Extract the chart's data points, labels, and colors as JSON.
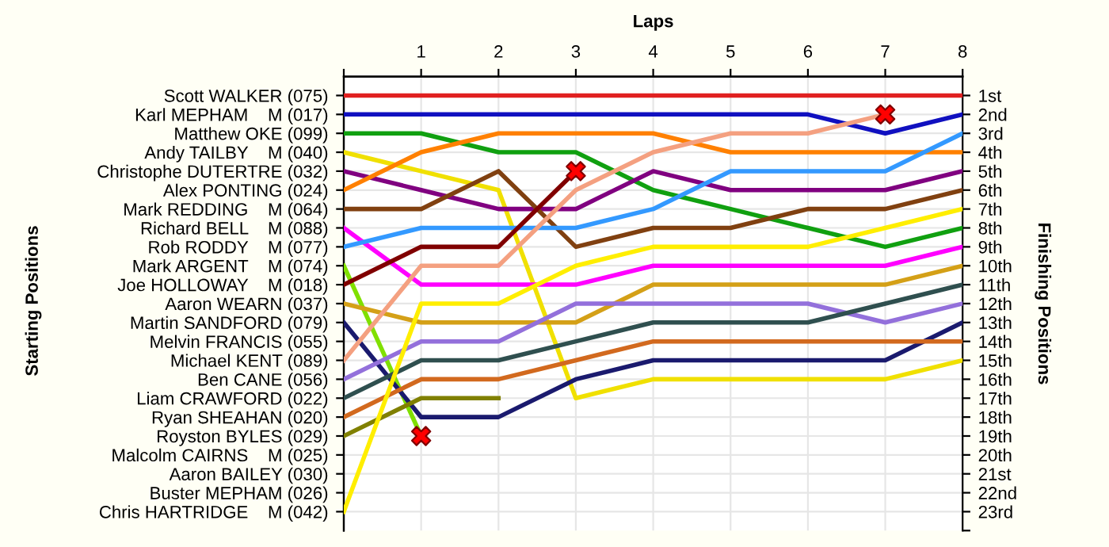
{
  "chart_data": {
    "type": "line",
    "xlabel": "Laps",
    "annotations": [
      "Starting Positions"
    ],
    "y2label": "Finishing Positions",
    "x": [
      0,
      1,
      2,
      3,
      4,
      5,
      6,
      7,
      8
    ],
    "xlim": [
      0,
      8
    ],
    "xticks": [
      {
        "value": 0,
        "label": null
      },
      1,
      2,
      3,
      4,
      5,
      6,
      7,
      8
    ],
    "y_categories": [
      "Scott WALKER (075)",
      "Karl MEPHAM    M (017)",
      "Matthew OKE (099)",
      "Andy TAILBY    M (040)",
      "Christophe DUTERTRE (032)",
      "Alex PONTING (024)",
      "Mark REDDING    M (064)",
      "Richard BELL    M (088)",
      "Rob RODDY    M (077)",
      "Mark ARGENT    M (074)",
      "Joe HOLLOWAY    M (018)",
      "Aaron WEARN (037)",
      "Martin SANDFORD (079)",
      "Melvin FRANCIS (055)",
      "Michael KENT (089)",
      "Ben CANE (056)",
      "Liam CRAWFORD (022)",
      "Ryan SHEAHAN (020)",
      "Royston BYLES (029)",
      "Malcolm CAIRNS    M (025)",
      "Aaron BAILEY (030)",
      "Buster MEPHAM (026)",
      "Chris HARTRIDGE    M (042)"
    ],
    "y2lim": [
      24,
      0
    ],
    "y2ticks": [
      {
        "value": 1,
        "label": "1st"
      },
      {
        "value": 2,
        "label": "2nd"
      },
      {
        "value": 3,
        "label": "3rd"
      },
      {
        "value": 4,
        "label": "4th"
      },
      {
        "value": 5,
        "label": "5th"
      },
      {
        "value": 6,
        "label": "6th"
      },
      {
        "value": 7,
        "label": "7th"
      },
      {
        "value": 8,
        "label": "8th"
      },
      {
        "value": 9,
        "label": "9th"
      },
      {
        "value": 10,
        "label": "10th"
      },
      {
        "value": 11,
        "label": "11th"
      },
      {
        "value": 12,
        "label": "12th"
      },
      {
        "value": 13,
        "label": "13th"
      },
      {
        "value": 14,
        "label": "14th"
      },
      {
        "value": 15,
        "label": "15th"
      },
      {
        "value": 16,
        "label": "16th"
      },
      {
        "value": 17,
        "label": "17th"
      },
      {
        "value": 18,
        "label": "18th"
      },
      {
        "value": 19,
        "label": "19th"
      },
      {
        "value": 20,
        "label": "20th"
      },
      {
        "value": 21,
        "label": "21st"
      },
      {
        "value": 22,
        "label": "22nd"
      },
      {
        "value": 23,
        "label": "23rd"
      },
      {
        "value": 24,
        "label": null
      }
    ],
    "grid": true,
    "marker": "none",
    "line_style": "solid",
    "series": [
      {
        "axis": "y2",
        "color": "#e02020",
        "values": [
          1,
          1,
          1,
          1,
          1,
          1,
          1,
          1,
          1
        ]
      },
      {
        "axis": "y2",
        "color": "#1010c0",
        "values": [
          2,
          2,
          2,
          2,
          2,
          2,
          2,
          3,
          2
        ]
      },
      {
        "axis": "y2",
        "color": "#10a010",
        "values": [
          3,
          3,
          4,
          4,
          6,
          7,
          8,
          9,
          8
        ]
      },
      {
        "axis": "y2",
        "color": "#f0e000",
        "values": [
          4,
          5,
          6,
          17,
          16,
          16,
          16,
          16,
          15
        ]
      },
      {
        "axis": "y2",
        "color": "#800080",
        "values": [
          5,
          6,
          7,
          7,
          5,
          6,
          6,
          6,
          5
        ]
      },
      {
        "axis": "y2",
        "color": "#ff8000",
        "values": [
          6,
          4,
          3,
          3,
          3,
          4,
          4,
          4,
          4
        ]
      },
      {
        "axis": "y2",
        "color": "#804010",
        "values": [
          7,
          7,
          5,
          9,
          8,
          8,
          7,
          7,
          6
        ]
      },
      {
        "axis": "y2",
        "color": "#ff00ff",
        "values": [
          8,
          11,
          11,
          11,
          10,
          10,
          10,
          10,
          9
        ]
      },
      {
        "axis": "y2",
        "color": "#3399ff",
        "values": [
          9,
          8,
          8,
          8,
          7,
          5,
          5,
          5,
          3
        ]
      },
      {
        "axis": "y2",
        "color": "#80e000",
        "values": [
          10,
          19,
          null,
          null,
          null,
          null,
          null,
          null,
          null
        ]
      },
      {
        "axis": "y2",
        "color": "#800000",
        "values": [
          11,
          9,
          9,
          5,
          null,
          null,
          null,
          null,
          null
        ]
      },
      {
        "axis": "y2",
        "color": "#d4a017",
        "values": [
          12,
          13,
          13,
          13,
          11,
          11,
          11,
          11,
          10
        ]
      },
      {
        "axis": "y2",
        "color": "#1a1a6e",
        "values": [
          13,
          18,
          18,
          16,
          15,
          15,
          15,
          15,
          13
        ]
      },
      {
        "axis": "y2",
        "color": "#f4a080",
        "values": [
          15,
          10,
          10,
          6,
          4,
          3,
          3,
          2,
          null
        ]
      },
      {
        "axis": "y2",
        "color": "#9370db",
        "values": [
          16,
          14,
          14,
          12,
          12,
          12,
          12,
          13,
          12
        ]
      },
      {
        "axis": "y2",
        "color": "#2f4f4f",
        "values": [
          17,
          15,
          15,
          14,
          13,
          13,
          13,
          12,
          11
        ]
      },
      {
        "axis": "y2",
        "color": "#d2691e",
        "values": [
          18,
          16,
          16,
          15,
          14,
          14,
          14,
          14,
          14
        ]
      },
      {
        "axis": "y2",
        "color": "#808000",
        "values": [
          19,
          17,
          17,
          null,
          null,
          null,
          null,
          null,
          null
        ]
      },
      {
        "axis": "y2",
        "color": "#ffee00",
        "values": [
          23,
          12,
          12,
          10,
          9,
          9,
          9,
          8,
          7
        ]
      },
      {
        "axis": "y2",
        "type": "scatter",
        "marker": "cross",
        "color": "#ff0000",
        "x": [
          1,
          3,
          7
        ],
        "values": [
          19,
          5,
          2
        ]
      }
    ]
  }
}
